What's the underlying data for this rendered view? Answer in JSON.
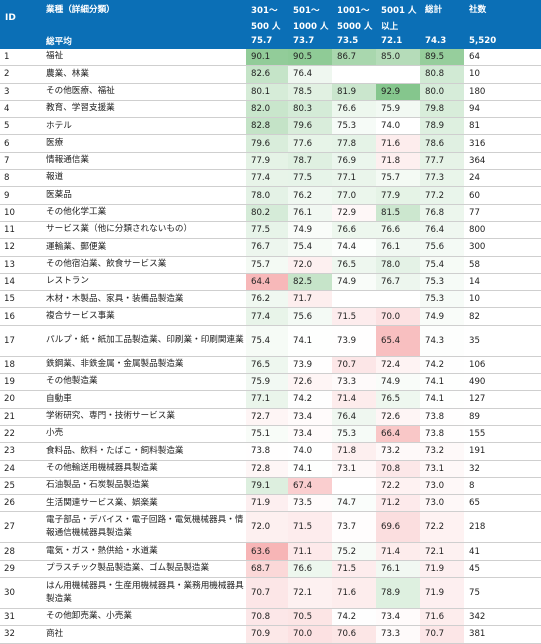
{
  "headers": {
    "id": "ID",
    "industry": "業種（詳細分類）",
    "c1_a": "301～",
    "c1_b": "500 人",
    "c2_a": "501～",
    "c2_b": "1000 人",
    "c3_a": "1001～",
    "c3_b": "5000 人",
    "c4_a": "5001 人",
    "c4_b": "以上",
    "total": "総計",
    "companies": "社数"
  },
  "average": {
    "label": "総平均",
    "values": [
      "75.7",
      "73.7",
      "73.5",
      "72.1",
      "74.3",
      "5,520"
    ]
  },
  "colors": {
    "header_bg": "#0b6fb6",
    "high": "#56b060",
    "low": "#f0787a",
    "neutral": "#ffffff",
    "border": "#cfcfcf"
  },
  "rows": [
    {
      "id": "1",
      "name": "福祉",
      "v": [
        "90.1",
        "90.5",
        "86.7",
        "85.0",
        "89.5"
      ],
      "n": "64"
    },
    {
      "id": "2",
      "name": "農業、林業",
      "v": [
        "82.6",
        "76.4",
        "",
        "",
        "80.8"
      ],
      "n": "10"
    },
    {
      "id": "3",
      "name": "その他医療、福祉",
      "v": [
        "80.1",
        "78.5",
        "81.9",
        "92.9",
        "80.0"
      ],
      "n": "180"
    },
    {
      "id": "4",
      "name": "教育、学習支援業",
      "v": [
        "82.0",
        "80.3",
        "76.6",
        "75.9",
        "79.8"
      ],
      "n": "94"
    },
    {
      "id": "5",
      "name": "ホテル",
      "v": [
        "82.8",
        "79.6",
        "75.3",
        "74.0",
        "78.9"
      ],
      "n": "81"
    },
    {
      "id": "6",
      "name": "医療",
      "v": [
        "79.6",
        "77.6",
        "77.8",
        "71.6",
        "78.6"
      ],
      "n": "316"
    },
    {
      "id": "7",
      "name": "情報通信業",
      "v": [
        "77.9",
        "78.7",
        "76.9",
        "71.8",
        "77.7"
      ],
      "n": "364"
    },
    {
      "id": "8",
      "name": "報道",
      "v": [
        "77.4",
        "77.5",
        "77.1",
        "75.7",
        "77.3"
      ],
      "n": "24"
    },
    {
      "id": "9",
      "name": "医薬品",
      "v": [
        "78.0",
        "76.2",
        "77.0",
        "77.9",
        "77.2"
      ],
      "n": "60"
    },
    {
      "id": "10",
      "name": "その他化学工業",
      "v": [
        "80.2",
        "76.1",
        "72.9",
        "81.5",
        "76.8"
      ],
      "n": "77"
    },
    {
      "id": "11",
      "name": "サービス業（他に分類されないもの）",
      "v": [
        "77.5",
        "74.9",
        "76.6",
        "76.6",
        "76.4"
      ],
      "n": "800"
    },
    {
      "id": "12",
      "name": "運輸業、郵便業",
      "v": [
        "76.7",
        "75.4",
        "74.4",
        "76.1",
        "75.6"
      ],
      "n": "300"
    },
    {
      "id": "13",
      "name": "その他宿泊業、飲食サービス業",
      "v": [
        "75.7",
        "72.0",
        "76.5",
        "78.0",
        "75.4"
      ],
      "n": "58"
    },
    {
      "id": "14",
      "name": "レストラン",
      "v": [
        "64.4",
        "82.5",
        "74.9",
        "76.7",
        "75.3"
      ],
      "n": "14"
    },
    {
      "id": "15",
      "name": "木材・木製品、家具・装備品製造業",
      "v": [
        "76.2",
        "71.7",
        "",
        "",
        "75.3"
      ],
      "n": "10"
    },
    {
      "id": "16",
      "name": "複合サービス事業",
      "v": [
        "77.4",
        "75.6",
        "71.5",
        "70.0",
        "74.9"
      ],
      "n": "82"
    },
    {
      "id": "17",
      "name": "パルプ・紙・紙加工品製造業、印刷業・印刷関連業",
      "v": [
        "75.4",
        "74.1",
        "73.9",
        "65.4",
        "74.3"
      ],
      "n": "35",
      "tall": true
    },
    {
      "id": "18",
      "name": "鉄鋼業、非鉄金属・金属製品製造業",
      "v": [
        "76.5",
        "73.9",
        "70.7",
        "72.4",
        "74.2"
      ],
      "n": "106"
    },
    {
      "id": "19",
      "name": "その他製造業",
      "v": [
        "75.9",
        "72.6",
        "73.3",
        "74.9",
        "74.1"
      ],
      "n": "490"
    },
    {
      "id": "20",
      "name": "自動車",
      "v": [
        "77.1",
        "74.2",
        "71.4",
        "76.5",
        "74.1"
      ],
      "n": "127"
    },
    {
      "id": "21",
      "name": "学術研究、専門・技術サービス業",
      "v": [
        "72.7",
        "73.4",
        "76.4",
        "72.6",
        "73.8"
      ],
      "n": "89"
    },
    {
      "id": "22",
      "name": "小売",
      "v": [
        "75.1",
        "73.4",
        "75.3",
        "66.4",
        "73.8"
      ],
      "n": "155"
    },
    {
      "id": "23",
      "name": "食料品、飲料・たばこ・飼料製造業",
      "v": [
        "73.8",
        "74.0",
        "71.8",
        "73.2",
        "73.2"
      ],
      "n": "191"
    },
    {
      "id": "24",
      "name": "その他輸送用機械器具製造業",
      "v": [
        "72.8",
        "74.1",
        "73.1",
        "70.8",
        "73.1"
      ],
      "n": "32"
    },
    {
      "id": "25",
      "name": "石油製品・石炭製品製造業",
      "v": [
        "79.1",
        "67.4",
        "",
        "72.2",
        "73.0"
      ],
      "n": "8"
    },
    {
      "id": "26",
      "name": "生活関連サービス業、娯楽業",
      "v": [
        "71.9",
        "73.5",
        "74.7",
        "71.2",
        "73.0"
      ],
      "n": "65"
    },
    {
      "id": "27",
      "name": "電子部品・デバイス・電子回路・電気機械器具・情報通信機械器具製造業",
      "v": [
        "72.0",
        "71.5",
        "73.7",
        "69.6",
        "72.2"
      ],
      "n": "218",
      "tall": true
    },
    {
      "id": "28",
      "name": "電気・ガス・熱供給・水道業",
      "v": [
        "63.6",
        "71.1",
        "75.2",
        "71.4",
        "72.1"
      ],
      "n": "41"
    },
    {
      "id": "29",
      "name": "プラスチック製品製造業、ゴム製品製造業",
      "v": [
        "68.7",
        "76.6",
        "71.5",
        "76.1",
        "71.9"
      ],
      "n": "45"
    },
    {
      "id": "30",
      "name": "はん用機械器具・生産用機械器具・業務用機械器具製造業",
      "v": [
        "70.7",
        "72.1",
        "71.6",
        "78.9",
        "71.9"
      ],
      "n": "75",
      "tall": true
    },
    {
      "id": "31",
      "name": "その他卸売業、小売業",
      "v": [
        "70.8",
        "70.5",
        "74.2",
        "73.4",
        "71.6"
      ],
      "n": "342"
    },
    {
      "id": "32",
      "name": "商社",
      "v": [
        "70.9",
        "70.0",
        "70.6",
        "73.3",
        "70.7"
      ],
      "n": "381"
    }
  ]
}
